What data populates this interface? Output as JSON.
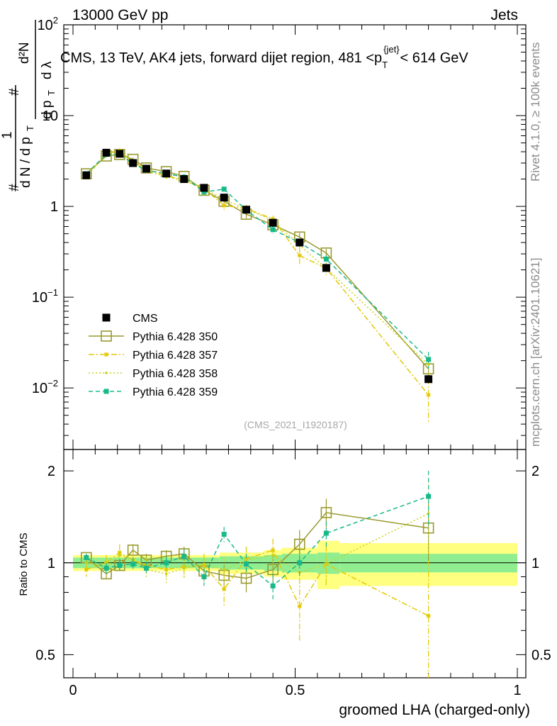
{
  "header": {
    "left": "13000 GeV pp",
    "right": "Jets"
  },
  "side_labels": {
    "rivet": "Rivet 4.1.0, ≥ 100k events",
    "mcplots": "mcplots.cern.ch [arXiv:2401.10621]"
  },
  "chart_data": {
    "type": "line",
    "title_prefix": "CMS, 13 TeV, AK4 jets, forward dijet region, 481 <p",
    "title_sub": "T",
    "title_sup": "{jet}",
    "title_suffix": "< 614 GeV",
    "analysis_tag": "(CMS_2021_I1920187)",
    "xlabel": "groomed LHA (charged-only)",
    "ylabel_main": "1/dN/dp_T d²N/dp_T dλ",
    "ylabel_ratio": "Ratio to CMS",
    "x_ticks": [
      "0",
      "0.5",
      "1"
    ],
    "y_ticks_main": [
      {
        "value": 0.01,
        "base": "10",
        "exp": "−2"
      },
      {
        "value": 0.1,
        "base": "10",
        "exp": "−1"
      },
      {
        "value": 1,
        "label": "1"
      },
      {
        "value": 10,
        "label": "10"
      },
      {
        "value": 100,
        "base": "10",
        "exp": "2"
      }
    ],
    "y_ticks_ratio": [
      "0.5",
      "1",
      "2"
    ],
    "xlim": [
      0,
      1
    ],
    "ylim_main": [
      0.0021,
      100
    ],
    "ylim_ratio": [
      0.42,
      2.35
    ],
    "log_y": true,
    "x": [
      0.03,
      0.075,
      0.105,
      0.135,
      0.165,
      0.21,
      0.25,
      0.295,
      0.34,
      0.39,
      0.45,
      0.51,
      0.57,
      0.8
    ],
    "x_edges": [
      0,
      0.06,
      0.09,
      0.12,
      0.15,
      0.18,
      0.24,
      0.26,
      0.33,
      0.35,
      0.43,
      0.47,
      0.55,
      0.6,
      1.0
    ],
    "data": {
      "name": "CMS",
      "values": [
        2.2,
        3.9,
        3.8,
        3.0,
        2.6,
        2.3,
        2.0,
        1.6,
        1.25,
        0.92,
        0.66,
        0.4,
        0.21,
        0.0125
      ],
      "band_stat": [
        0.04,
        0.04,
        0.04,
        0.04,
        0.04,
        0.04,
        0.04,
        0.04,
        0.05,
        0.05,
        0.06,
        0.07,
        0.08,
        0.07
      ],
      "band_total": [
        0.06,
        0.06,
        0.06,
        0.06,
        0.06,
        0.06,
        0.06,
        0.06,
        0.08,
        0.08,
        0.1,
        0.12,
        0.18,
        0.16
      ]
    },
    "series": [
      {
        "name": "Pythia 6.428 350",
        "color": "#9a9a2e",
        "style": "solid",
        "marker": "open-square",
        "ratio": [
          1.04,
          0.92,
          0.98,
          1.1,
          1.02,
          1.05,
          1.07,
          0.94,
          0.91,
          0.89,
          0.95,
          1.15,
          1.46,
          1.3
        ],
        "ratio_err": [
          0.03,
          0.03,
          0.04,
          0.05,
          0.05,
          0.05,
          0.06,
          0.07,
          0.08,
          0.09,
          0.1,
          0.13,
          0.16,
          0.3
        ]
      },
      {
        "name": "Pythia 6.428 357",
        "color": "#e3c800",
        "style": "dashdot",
        "marker": "star",
        "ratio": [
          0.95,
          1.0,
          1.08,
          1.02,
          0.98,
          0.95,
          0.97,
          0.98,
          0.82,
          1.03,
          1.1,
          0.72,
          0.99,
          0.67
        ],
        "ratio_err": [
          0.05,
          0.06,
          0.07,
          0.07,
          0.06,
          0.07,
          0.08,
          0.08,
          0.1,
          0.1,
          0.1,
          0.17,
          0.15,
          0.35
        ]
      },
      {
        "name": "Pythia 6.428 358",
        "color": "#cbd11a",
        "style": "dotted",
        "marker": "dot",
        "ratio": [
          1.0,
          0.97,
          1.06,
          1.03,
          0.95,
          0.92,
          0.96,
          0.99,
          0.95,
          1.02,
          1.06,
          0.93,
          0.99,
          1.45
        ],
        "ratio_err": [
          0.05,
          0.06,
          0.06,
          0.06,
          0.06,
          0.07,
          0.07,
          0.08,
          0.09,
          0.1,
          0.1,
          0.14,
          0.14,
          0.4
        ]
      },
      {
        "name": "Pythia 6.428 359",
        "color": "#18b888",
        "style": "dashed",
        "marker": "filled-square",
        "ratio": [
          1.04,
          0.96,
          0.98,
          0.99,
          0.96,
          1.0,
          1.05,
          0.9,
          1.24,
          0.99,
          0.84,
          1.0,
          1.25,
          1.65
        ],
        "ratio_err": [
          0.03,
          0.04,
          0.05,
          0.05,
          0.05,
          0.05,
          0.06,
          0.06,
          0.07,
          0.08,
          0.08,
          0.1,
          0.12,
          0.35
        ]
      }
    ]
  }
}
